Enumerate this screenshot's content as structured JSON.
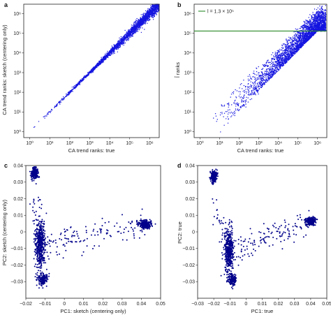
{
  "chart_data": [
    {
      "type": "scatter",
      "panel_label": "a",
      "xlabel": "CA trend ranks: true",
      "ylabel": "CA trend ranks: sketch (centering only)",
      "xscale": "log",
      "yscale": "log",
      "xlim": [
        0.5,
        3000000
      ],
      "ylim": [
        0.5,
        3000000
      ],
      "xticks": [
        1,
        10,
        100,
        1000,
        10000,
        100000,
        1000000
      ],
      "xtick_labels": [
        "10⁰",
        "10¹",
        "10²",
        "10³",
        "10⁴",
        "10⁵",
        "10⁶"
      ],
      "yticks": [
        1,
        10,
        100,
        1000,
        10000,
        100000,
        1000000
      ],
      "ytick_labels": [
        "10⁰",
        "10¹",
        "10²",
        "10³",
        "10⁴",
        "10⁵",
        "10⁶"
      ],
      "point_color": "#1515e0",
      "pattern": "dense band along y = x, widening slightly at high ranks"
    },
    {
      "type": "scatter",
      "panel_label": "b",
      "xlabel": "CA trend ranks: true",
      "ylabel": "l̂ ranks",
      "xscale": "log",
      "yscale": "log",
      "xlim": [
        0.5,
        3000000
      ],
      "ylim": [
        0.5,
        3000000
      ],
      "xticks": [
        1,
        10,
        100,
        1000,
        10000,
        100000,
        1000000
      ],
      "xtick_labels": [
        "10⁰",
        "10¹",
        "10²",
        "10³",
        "10⁴",
        "10⁵",
        "10⁶"
      ],
      "yticks": [
        1,
        10,
        100,
        1000,
        10000,
        100000,
        1000000
      ],
      "ytick_labels": [
        "10⁰",
        "10¹",
        "10²",
        "10³",
        "10⁴",
        "10⁵",
        "10⁶"
      ],
      "hline": {
        "y": 130000,
        "color": "#2a8a2a"
      },
      "legend": {
        "label": "l = 1.3 × 10⁵",
        "position": "top-left"
      },
      "point_color": "#1515e0",
      "pattern": "cloud rising from low-x sparse points to a dense band hugging y = x at high ranks"
    },
    {
      "type": "scatter",
      "panel_label": "c",
      "xlabel": "PC1: sketch (centering only)",
      "ylabel": "PC2: sketch (centering only)",
      "xlim": [
        -0.02,
        0.05
      ],
      "ylim": [
        -0.04,
        0.04
      ],
      "xticks": [
        -0.02,
        -0.01,
        0,
        0.01,
        0.02,
        0.03,
        0.04,
        0.05
      ],
      "xtick_labels": [
        "−0.02",
        "−0.01",
        "0",
        "0.01",
        "0.02",
        "0.03",
        "0.04",
        "0.05"
      ],
      "yticks": [
        -0.03,
        -0.02,
        -0.01,
        0,
        0.01,
        0.02,
        0.03,
        0.04
      ],
      "ytick_labels": [
        "−0.03",
        "−0.02",
        "−0.01",
        "0",
        "0.01",
        "0.02",
        "0.03",
        "0.04"
      ],
      "point_color": "#00008b",
      "clusters": [
        {
          "x": -0.0155,
          "y": 0.0355,
          "sx": 0.0009,
          "sy": 0.0018,
          "n": 220
        },
        {
          "x": -0.0125,
          "y": -0.008,
          "sx": 0.0013,
          "sy": 0.0075,
          "n": 420
        },
        {
          "x": -0.011,
          "y": -0.0285,
          "sx": 0.0012,
          "sy": 0.0018,
          "n": 160
        },
        {
          "x": 0.042,
          "y": 0.0045,
          "sx": 0.0016,
          "sy": 0.0013,
          "n": 240
        }
      ]
    },
    {
      "type": "scatter",
      "panel_label": "d",
      "xlabel": "PC1: true",
      "ylabel": "PC2: true",
      "xlim": [
        -0.03,
        0.05
      ],
      "ylim": [
        -0.04,
        0.04
      ],
      "xticks": [
        -0.03,
        -0.02,
        -0.01,
        0,
        0.01,
        0.02,
        0.03,
        0.04,
        0.05
      ],
      "xtick_labels": [
        "−0.03",
        "−0.02",
        "−0.01",
        "0",
        "0.01",
        "0.02",
        "0.03",
        "0.04",
        "0.05"
      ],
      "yticks": [
        -0.03,
        -0.02,
        -0.01,
        0,
        0.01,
        0.02,
        0.03,
        0.04
      ],
      "ytick_labels": [
        "−0.03",
        "−0.02",
        "−0.01",
        "0",
        "0.01",
        "0.02",
        "0.03",
        "0.04"
      ],
      "point_color": "#00008b",
      "clusters": [
        {
          "x": -0.02,
          "y": 0.0335,
          "sx": 0.0011,
          "sy": 0.0017,
          "n": 220
        },
        {
          "x": -0.0105,
          "y": -0.012,
          "sx": 0.0014,
          "sy": 0.0065,
          "n": 400
        },
        {
          "x": -0.0085,
          "y": -0.029,
          "sx": 0.0012,
          "sy": 0.0018,
          "n": 160
        },
        {
          "x": 0.04,
          "y": 0.0065,
          "sx": 0.0016,
          "sy": 0.0012,
          "n": 240
        }
      ]
    }
  ]
}
